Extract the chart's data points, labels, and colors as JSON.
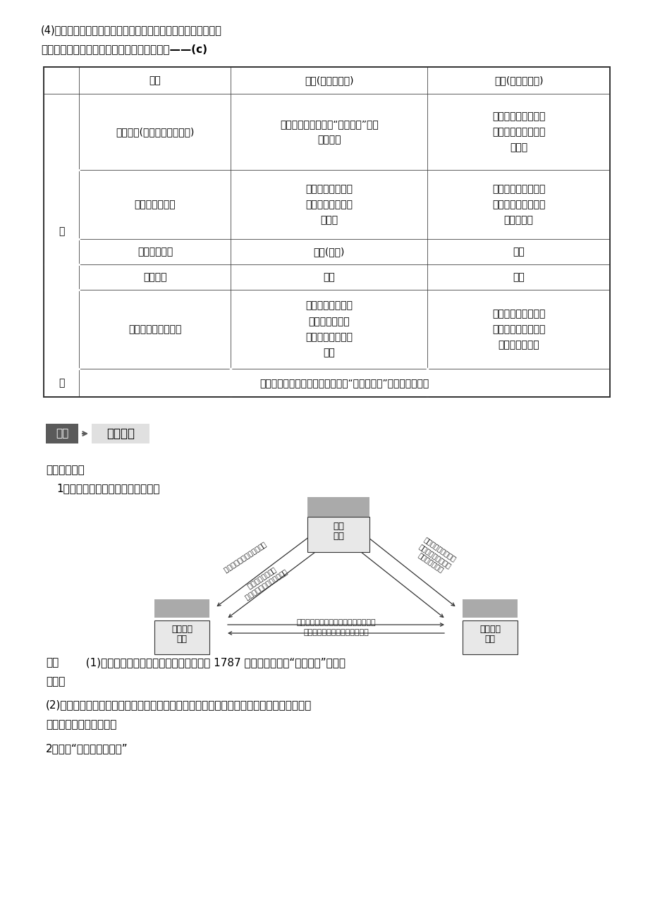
{
  "background_color": "#ffffff",
  "top_text": "(4)避免了中央集权的弊端，又可以发挥地方的积极性和创造性。",
  "section_title": "三、比较美国共和制与英国君主立寪制的异同——(c)",
  "table_header_col1": "政体",
  "table_header_col2": "英国(君主立寪制)",
  "table_header_col3": "美国(民主共和制)",
  "row1_col1": "国家元首(称谓，产生与职能)",
  "row1_col2": "国王，世襲，终身，“统而不治”，国\n家的象征",
  "row1_col3": "总统，选举产生有任\n期，政府首脑，三军\n总司令",
  "row2_col1": "政府与议会关系",
  "row2_col2": "内阁由议会产生，\n对议会负责，掌握\n行政权",
  "row2_col3": "政府首脑即总统，行\n使行政权。总统与国\n会相互制脆",
  "row3_col1": "国家权力中心",
  "row3_col2": "议会(下院)",
  "row3_col3": "总统",
  "row4_col1": "政府首脑",
  "row4_col2": "首相",
  "row4_col3": "总统",
  "row5_col1": "议会与议员产生方式",
  "row5_col2": "上院由贵族世襲，\n下院议员民主选\n举产生，共同组成\n议会",
  "row5_col3": "国会由参议院和众议\n院组成，两院议员均\n由民主选举产生",
  "row6_text": "都属于代议制民主制度；都体现了“分权与制脆”原则、法治原则",
  "yi_char": "异",
  "tong_char": "同",
  "section2_label": "细讲",
  "section2_title": "核心考点",
  "shiliao_title": "【史料实证】",
  "diagram_title": "1．美国三权分立的权力构建示意图",
  "diagram_top_label1": "总统",
  "diagram_top_label2": "行政",
  "diagram_left_label1": "参众两院",
  "diagram_left_label2": "立法",
  "diagram_right_label1": "联邦法院",
  "diagram_right_label2": "司法",
  "left_text1": "总统可否决国会通过的法律",
  "left_text2": "国会可以三分之二多数通过\n总统所否决的法律",
  "right_text1": "联邦法院可宣布总统\n令违寪，总统提名法\n官经参议院批准",
  "bottom_text1": "总统提名的司法官员必须经参议院批准",
  "bottom_text2": "最高法院可宣布法律不符合寪法",
  "jieda_label": "解读",
  "jieda_p1a": "  (1)图片背景：美国独立战争胜利后，颌布 1787 年寪法，确立了“三权分立”的国家",
  "jieda_p1b": "政体。",
  "jieda_p2": "(2)图示内容：美国联邦政府权力结构体现三权分立，权力相互制约与平衡的核心原则有利于",
  "jieda_p3": "防止独裁，维护共和制。",
  "item2_title": "2．漫画“美国总统不好当”"
}
